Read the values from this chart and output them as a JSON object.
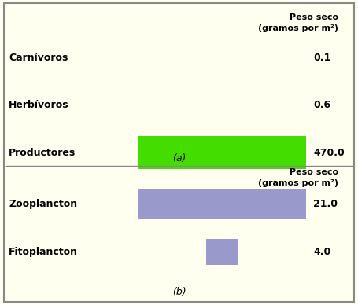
{
  "background_color": "#FFFFF0",
  "border_color": "#888888",
  "panel_a": {
    "rows": [
      {
        "label": "Carnívoros",
        "value": 0.1,
        "display": "0.1"
      },
      {
        "label": "Herbívoros",
        "value": 0.6,
        "display": "0.6"
      },
      {
        "label": "Productores",
        "value": 470.0,
        "display": "470.0"
      }
    ],
    "bar_color": "#44DD00",
    "max_value": 470.0,
    "footer": "(a)",
    "header_line1": "Peso seco",
    "header_line2": "(gramos por m²)"
  },
  "panel_b": {
    "rows": [
      {
        "label": "Zooplancton",
        "value": 21.0,
        "display": "21.0"
      },
      {
        "label": "Fitoplancton",
        "value": 4.0,
        "display": "4.0"
      }
    ],
    "bar_color": "#9999CC",
    "max_value": 21.0,
    "footer": "(b)",
    "header_line1": "Peso seco",
    "header_line2": "(gramos por m²)"
  },
  "label_fontsize": 9,
  "value_fontsize": 9,
  "header_fontsize": 8,
  "footer_fontsize": 9
}
